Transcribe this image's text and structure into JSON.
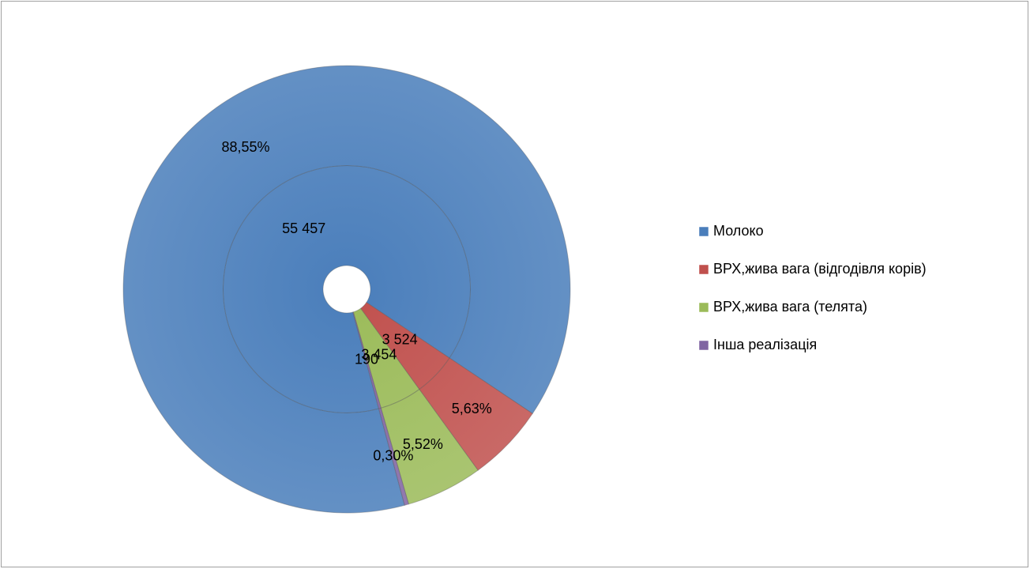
{
  "chart_data": {
    "type": "doughnut",
    "categories": [
      "Молоко",
      "ВРХ,жива вага (відгодівля корів)",
      "ВРХ,жива вага (телята)",
      "Інша реалізація"
    ],
    "colors": [
      "#4a7ebb",
      "#c0504d",
      "#9bbb59",
      "#8064a2"
    ],
    "series": [
      {
        "values": [
          55457,
          3524,
          3454,
          190
        ],
        "value_labels": [
          "55 457",
          "3 524",
          "3 454",
          "190"
        ]
      },
      {
        "values": [
          88.55,
          5.63,
          5.52,
          0.3
        ],
        "value_labels": [
          "88,55%",
          "5,63%",
          "5,52%",
          "0,30%"
        ]
      }
    ],
    "legend": "right"
  }
}
